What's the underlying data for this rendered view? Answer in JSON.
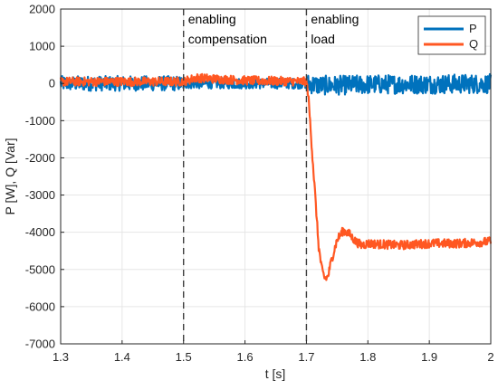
{
  "chart_data": {
    "type": "line",
    "xlabel": "t [s]",
    "ylabel": "P [W], Q [Var]",
    "xlim": [
      1.3,
      2.0
    ],
    "ylim": [
      -7000,
      2000
    ],
    "x_ticks": [
      "1.3",
      "1.4",
      "1.5",
      "1.6",
      "1.7",
      "1.8",
      "1.9",
      "2"
    ],
    "y_ticks": [
      "2000",
      "1000",
      "0",
      "-1000",
      "-2000",
      "-3000",
      "-4000",
      "-5000",
      "-6000",
      "-7000"
    ],
    "grid": true,
    "legend_position": "top-right",
    "markers": [
      {
        "x": 1.5,
        "label_line1": "enabling",
        "label_line2": " compensation"
      },
      {
        "x": 1.7,
        "label_line1": "enabling",
        "label_line2": " load"
      }
    ],
    "series": [
      {
        "name": "P",
        "color": "#0072BD",
        "x": [
          1.3,
          1.35,
          1.4,
          1.45,
          1.5,
          1.55,
          1.6,
          1.65,
          1.7,
          1.72,
          1.75,
          1.8,
          1.85,
          1.9,
          1.95,
          2.0
        ],
        "y": [
          0,
          0,
          0,
          0,
          0,
          0,
          0,
          0,
          0,
          -50,
          -50,
          -30,
          -20,
          -20,
          -10,
          -10
        ],
        "noise": 200
      },
      {
        "name": "Q",
        "color": "#FF5722",
        "x": [
          1.3,
          1.4,
          1.5,
          1.52,
          1.6,
          1.7,
          1.703,
          1.71,
          1.715,
          1.72,
          1.725,
          1.73,
          1.735,
          1.74,
          1.75,
          1.76,
          1.77,
          1.78,
          1.79,
          1.8,
          1.85,
          1.9,
          1.95,
          2.0
        ],
        "y": [
          50,
          50,
          50,
          150,
          80,
          50,
          -300,
          -2000,
          -3200,
          -4400,
          -5000,
          -5250,
          -5200,
          -4800,
          -4200,
          -3950,
          -4050,
          -4250,
          -4350,
          -4300,
          -4350,
          -4300,
          -4300,
          -4250
        ],
        "noise": 120
      }
    ]
  }
}
